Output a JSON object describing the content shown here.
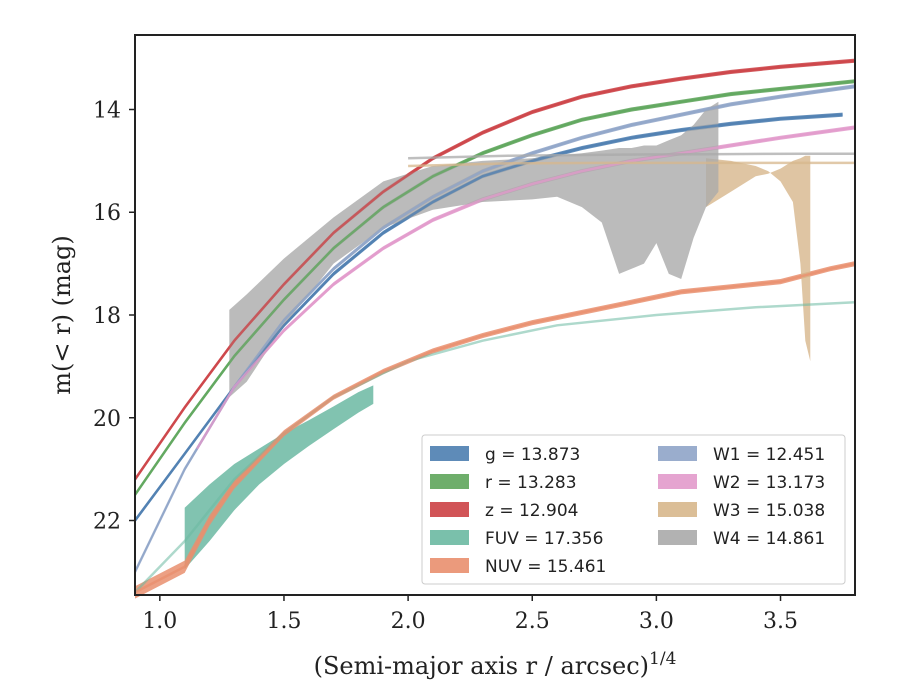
{
  "chart_data": {
    "type": "line",
    "xlabel": "(Semi-major axis r / arcsec)",
    "xlabel_exponent": "1/4",
    "ylabel": "m(< r) (mag)",
    "xlim": [
      0.9,
      3.8
    ],
    "ylim": [
      23.45,
      12.55
    ],
    "y_inverted": true,
    "xticks": [
      1.0,
      1.5,
      2.0,
      2.5,
      3.0,
      3.5
    ],
    "xtick_labels": [
      "1.0",
      "1.5",
      "2.0",
      "2.5",
      "3.0",
      "3.5"
    ],
    "yticks": [
      14,
      16,
      18,
      20,
      22
    ],
    "ytick_labels": [
      "14",
      "16",
      "18",
      "20",
      "22"
    ],
    "grid": false,
    "legend_position": "lower-right",
    "series": [
      {
        "name": "g = 13.873",
        "color": "#4c7eb0",
        "x": [
          0.9,
          1.1,
          1.3,
          1.5,
          1.7,
          1.9,
          2.1,
          2.3,
          2.5,
          2.7,
          2.9,
          3.1,
          3.3,
          3.5,
          3.75
        ],
        "y": [
          22.0,
          20.7,
          19.4,
          18.2,
          17.2,
          16.4,
          15.8,
          15.3,
          15.0,
          14.75,
          14.55,
          14.4,
          14.28,
          14.18,
          14.1
        ],
        "band": [
          0.04,
          0.04,
          0.04,
          0.04,
          0.04,
          0.04,
          0.04,
          0.04,
          0.04,
          0.04,
          0.04,
          0.04,
          0.04,
          0.04,
          0.04
        ]
      },
      {
        "name": "r = 13.283",
        "color": "#5ea55b",
        "x": [
          0.9,
          1.1,
          1.3,
          1.5,
          1.7,
          1.9,
          2.1,
          2.3,
          2.5,
          2.7,
          2.9,
          3.1,
          3.3,
          3.5,
          3.8
        ],
        "y": [
          21.5,
          20.1,
          18.8,
          17.7,
          16.7,
          15.9,
          15.3,
          14.85,
          14.5,
          14.2,
          14.0,
          13.85,
          13.7,
          13.6,
          13.45
        ],
        "band": [
          0.04,
          0.04,
          0.04,
          0.04,
          0.04,
          0.04,
          0.04,
          0.04,
          0.04,
          0.04,
          0.04,
          0.04,
          0.04,
          0.04,
          0.04
        ]
      },
      {
        "name": "z = 12.904",
        "color": "#cc4145",
        "x": [
          0.9,
          1.1,
          1.3,
          1.5,
          1.7,
          1.9,
          2.1,
          2.3,
          2.5,
          2.7,
          2.9,
          3.1,
          3.3,
          3.5,
          3.8
        ],
        "y": [
          21.2,
          19.8,
          18.5,
          17.4,
          16.4,
          15.6,
          14.95,
          14.45,
          14.05,
          13.75,
          13.55,
          13.4,
          13.27,
          13.17,
          13.05
        ],
        "band": [
          0.04,
          0.04,
          0.04,
          0.04,
          0.04,
          0.04,
          0.04,
          0.04,
          0.04,
          0.04,
          0.04,
          0.04,
          0.04,
          0.04,
          0.04
        ]
      },
      {
        "name": "FUV = 17.356",
        "color": "#6bb9a2",
        "x": [
          1.1,
          1.2,
          1.3,
          1.4,
          1.5,
          1.6,
          1.7,
          1.8,
          1.86
        ],
        "y": [
          22.35,
          21.85,
          21.35,
          20.95,
          20.6,
          20.3,
          20.0,
          19.7,
          19.55
        ],
        "band": [
          0.6,
          0.55,
          0.45,
          0.35,
          0.3,
          0.25,
          0.22,
          0.2,
          0.18
        ],
        "x_model": [
          0.9,
          1.1,
          1.3,
          1.5,
          1.7,
          2.0,
          2.3,
          2.6,
          3.0,
          3.4,
          3.8
        ],
        "y_model": [
          23.4,
          22.4,
          21.2,
          20.3,
          19.6,
          18.9,
          18.5,
          18.2,
          18.0,
          17.85,
          17.75
        ]
      },
      {
        "name": "NUV = 15.461",
        "color": "#e98f6e",
        "x": [
          0.9,
          1.1,
          1.2,
          1.3,
          1.5,
          1.7,
          1.9,
          2.1,
          2.3,
          2.5,
          2.7,
          2.9,
          3.1,
          3.3,
          3.5,
          3.7,
          3.8
        ],
        "y": [
          23.4,
          22.9,
          22.0,
          21.3,
          20.3,
          19.6,
          19.1,
          18.7,
          18.4,
          18.15,
          17.95,
          17.75,
          17.55,
          17.45,
          17.35,
          17.1,
          17.0
        ],
        "band": [
          0.12,
          0.12,
          0.1,
          0.08,
          0.06,
          0.05,
          0.05,
          0.05,
          0.05,
          0.05,
          0.05,
          0.05,
          0.05,
          0.05,
          0.05,
          0.05,
          0.05
        ]
      },
      {
        "name": "W1 = 12.451",
        "color": "#8fa4c8",
        "x": [
          0.9,
          1.1,
          1.3,
          1.5,
          1.7,
          1.9,
          2.1,
          2.3,
          2.5,
          2.7,
          2.9,
          3.1,
          3.3,
          3.5,
          3.8
        ],
        "y": [
          23.0,
          21.0,
          19.4,
          18.1,
          17.1,
          16.3,
          15.7,
          15.2,
          14.85,
          14.55,
          14.3,
          14.1,
          13.9,
          13.75,
          13.55
        ],
        "band": [
          0.04,
          0.04,
          0.04,
          0.04,
          0.04,
          0.04,
          0.04,
          0.04,
          0.04,
          0.04,
          0.04,
          0.04,
          0.04,
          0.04,
          0.04
        ]
      },
      {
        "name": "W2 = 13.173",
        "color": "#e29acb",
        "x": [
          1.15,
          1.3,
          1.5,
          1.7,
          1.9,
          2.1,
          2.3,
          2.5,
          2.7,
          2.9,
          3.1,
          3.3,
          3.5,
          3.8
        ],
        "y": [
          20.6,
          19.4,
          18.3,
          17.4,
          16.7,
          16.15,
          15.75,
          15.45,
          15.2,
          15.0,
          14.85,
          14.7,
          14.55,
          14.35
        ],
        "band": [
          0.04,
          0.04,
          0.04,
          0.04,
          0.04,
          0.04,
          0.04,
          0.04,
          0.04,
          0.04,
          0.04,
          0.04,
          0.04,
          0.04
        ]
      },
      {
        "name": "W3 = 15.038",
        "color": "#d7b78c",
        "x": [
          2.0,
          2.4,
          2.8,
          3.2,
          3.6,
          3.8
        ],
        "y": [
          15.1,
          15.05,
          15.04,
          15.04,
          15.04,
          15.04
        ],
        "band_x": [
          3.2,
          3.3,
          3.4,
          3.45,
          3.5,
          3.55,
          3.58,
          3.6,
          3.62
        ],
        "band_low": [
          14.95,
          15.0,
          15.1,
          15.2,
          15.4,
          15.8,
          17.0,
          18.5,
          18.9
        ],
        "band_high": [
          15.9,
          15.6,
          15.3,
          15.25,
          15.15,
          15.0,
          14.95,
          14.9,
          14.9
        ]
      },
      {
        "name": "W4 = 14.861",
        "color": "#aaaaaa",
        "x": [
          2.0,
          2.4,
          2.8,
          3.2,
          3.6,
          3.8
        ],
        "y": [
          14.95,
          14.9,
          14.88,
          14.87,
          14.86,
          14.86
        ],
        "band_x": [
          1.28,
          1.35,
          1.5,
          1.7,
          1.9,
          2.1,
          2.3,
          2.5,
          2.6,
          2.7,
          2.78,
          2.85,
          2.9,
          2.95,
          3.0,
          3.05,
          3.1,
          3.15,
          3.2,
          3.25
        ],
        "band_low": [
          19.6,
          19.3,
          18.2,
          17.0,
          16.3,
          15.95,
          15.8,
          15.75,
          15.7,
          15.9,
          16.2,
          17.2,
          17.1,
          17.0,
          16.6,
          17.2,
          17.3,
          16.5,
          15.9,
          15.6
        ],
        "band_high": [
          17.9,
          17.6,
          16.9,
          16.1,
          15.4,
          15.1,
          15.0,
          14.95,
          14.9,
          14.85,
          14.8,
          14.75,
          14.75,
          14.7,
          14.7,
          14.6,
          14.5,
          14.3,
          14.0,
          13.85
        ]
      }
    ]
  }
}
